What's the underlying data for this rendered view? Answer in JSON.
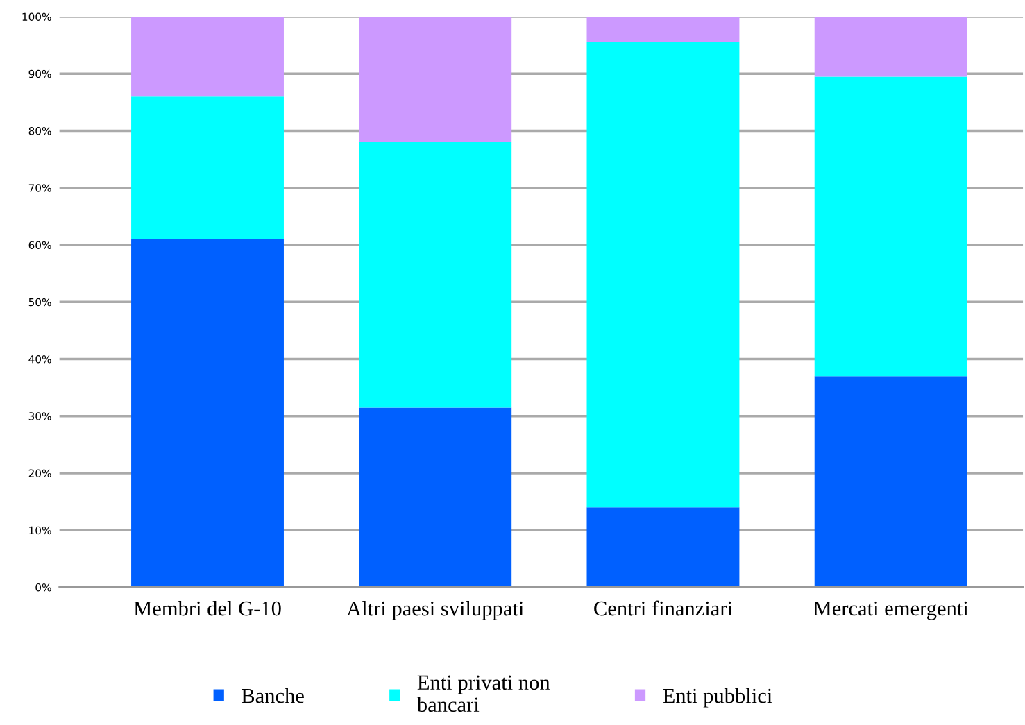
{
  "chart_data": {
    "type": "bar",
    "stacked": true,
    "categories": [
      "Membri del G-10",
      "Altri paesi sviluppati",
      "Centri finanziari",
      "Mercati emergenti"
    ],
    "series": [
      {
        "name": "Banche",
        "color": "#0060ff",
        "values": [
          61,
          31.5,
          14,
          37
        ]
      },
      {
        "name": "Enti privati non\nbancari",
        "color": "#00ffff",
        "values": [
          25,
          46.5,
          81.5,
          52.5
        ]
      },
      {
        "name": "Enti pubblici",
        "color": "#cc99ff",
        "values": [
          14,
          22,
          4.5,
          10.5
        ]
      }
    ],
    "ylim": [
      0,
      100
    ],
    "yticks": [
      {
        "value": 0,
        "label": "0%"
      },
      {
        "value": 10,
        "label": "10%"
      },
      {
        "value": 20,
        "label": "20%"
      },
      {
        "value": 30,
        "label": "30%"
      },
      {
        "value": 40,
        "label": "40%"
      },
      {
        "value": 50,
        "label": "50%"
      },
      {
        "value": 60,
        "label": "60%"
      },
      {
        "value": 70,
        "label": "70%"
      },
      {
        "value": 80,
        "label": "80%"
      },
      {
        "value": 90,
        "label": "90%"
      },
      {
        "value": 100,
        "label": "100%"
      }
    ],
    "grid": "y",
    "legend": "bottom"
  }
}
